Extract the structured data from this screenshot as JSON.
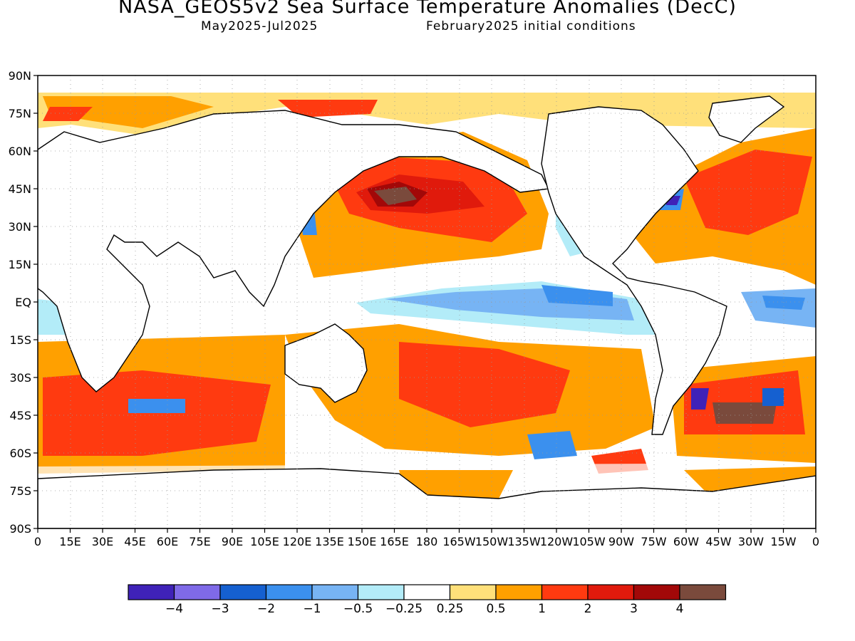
{
  "title": "NASA_GEOS5v2 Sea Surface Temperature Anomalies (DecC)",
  "subtitle_period": "May2025-Jul2025",
  "subtitle_init": "February2025 initial conditions",
  "lat_labels": [
    "90N",
    "75N",
    "60N",
    "45N",
    "30N",
    "15N",
    "EQ",
    "15S",
    "30S",
    "45S",
    "60S",
    "75S",
    "90S"
  ],
  "lon_labels": [
    "0",
    "15E",
    "30E",
    "45E",
    "60E",
    "75E",
    "90E",
    "105E",
    "120E",
    "135E",
    "150E",
    "165E",
    "180",
    "165W",
    "150W",
    "135W",
    "120W",
    "105W",
    "90W",
    "75W",
    "60W",
    "45W",
    "30W",
    "15W",
    "0"
  ],
  "colorbar": {
    "colors": [
      "#3f22b8",
      "#7f6ae8",
      "#1560d0",
      "#3b90ee",
      "#77b4f4",
      "#b3ecf8",
      "#ffffff",
      "#ffe07a",
      "#ffa000",
      "#ff3a10",
      "#e01a0c",
      "#a20808",
      "#7a4a3c"
    ],
    "labels": [
      "-4",
      "-3",
      "-2",
      "-1",
      "-0.5",
      "-0.25",
      "0.25",
      "0.5",
      "1",
      "2",
      "3",
      "4"
    ]
  },
  "legend_levels": {
    "m4": "#3f22b8",
    "m3": "#7f6ae8",
    "m2": "#1560d0",
    "m1": "#3b90ee",
    "m05": "#77b4f4",
    "m025": "#b3ecf8",
    "p025": "#ffe07a",
    "p05": "#ffa000",
    "p1": "#ff3a10",
    "p2": "#e01a0c",
    "p3": "#a20808",
    "p4": "#7a4a3c"
  }
}
